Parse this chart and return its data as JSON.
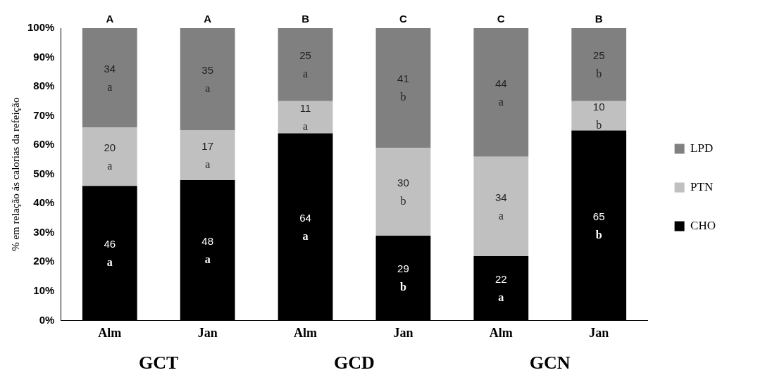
{
  "chart_data": {
    "type": "bar",
    "stacked": true,
    "ylabel": "% em relação ás calorias da refeição",
    "categories": [
      "Alm",
      "Jan",
      "Alm",
      "Jan",
      "Alm",
      "Jan"
    ],
    "series": [
      {
        "name": "CHO",
        "color": "#000000",
        "values": [
          46,
          48,
          64,
          29,
          22,
          65
        ]
      },
      {
        "name": "PTN",
        "color": "#c0c0c0",
        "values": [
          20,
          17,
          11,
          30,
          34,
          10
        ]
      },
      {
        "name": "LPD",
        "color": "#808080",
        "values": [
          34,
          35,
          25,
          41,
          44,
          25
        ]
      }
    ],
    "ylim": [
      0,
      100
    ],
    "yticks": [
      {
        "value": 0,
        "label": "0%"
      },
      {
        "value": 10,
        "label": "10%"
      },
      {
        "value": 20,
        "label": "20%"
      },
      {
        "value": 30,
        "label": "30%"
      },
      {
        "value": 40,
        "label": "40%"
      },
      {
        "value": 50,
        "label": "50%"
      },
      {
        "value": 60,
        "label": "60%"
      },
      {
        "value": 70,
        "label": "70%"
      },
      {
        "value": 80,
        "label": "80%"
      },
      {
        "value": 90,
        "label": "90%"
      },
      {
        "value": 100,
        "label": "100%"
      }
    ],
    "data_labels": true,
    "grid": false,
    "legend": "right",
    "annotations": [
      "A",
      "A",
      "B",
      "C",
      "C",
      "B",
      "GCT",
      "GCD",
      "GCN",
      "a",
      "a",
      "a",
      "a",
      "a",
      "a",
      "a",
      "a",
      "a",
      "b",
      "b",
      "b",
      "a",
      "a",
      "a",
      "b",
      "b",
      "b"
    ]
  }
}
